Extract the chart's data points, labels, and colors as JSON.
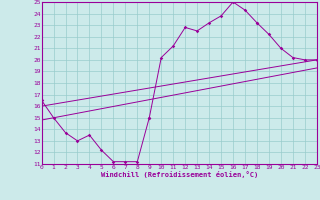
{
  "title": "",
  "xlabel": "Windchill (Refroidissement éolien,°C)",
  "bg_color": "#cceaea",
  "line_color": "#990099",
  "grid_color": "#99cccc",
  "xmin": 0,
  "xmax": 23,
  "ymin": 11,
  "ymax": 25,
  "straight1": {
    "x": [
      0,
      23
    ],
    "y": [
      16.0,
      20.0
    ]
  },
  "straight2": {
    "x": [
      0,
      23
    ],
    "y": [
      14.8,
      19.3
    ]
  },
  "l1x": [
    0,
    1,
    2,
    3,
    4,
    5,
    6,
    7,
    8,
    9
  ],
  "l1y": [
    16.5,
    15.0,
    13.7,
    13.0,
    13.5,
    12.2,
    11.2,
    11.2,
    11.2,
    15.0
  ],
  "l2x": [
    9,
    10,
    11,
    12,
    13,
    14,
    15,
    16,
    17,
    18
  ],
  "l2y": [
    15.0,
    20.2,
    21.2,
    22.8,
    22.5,
    23.2,
    23.8,
    25.0,
    24.3,
    23.2
  ],
  "l3x": [
    18,
    19,
    20,
    21,
    22,
    23
  ],
  "l3y": [
    23.2,
    22.2,
    21.0,
    20.2,
    20.0,
    20.0
  ]
}
